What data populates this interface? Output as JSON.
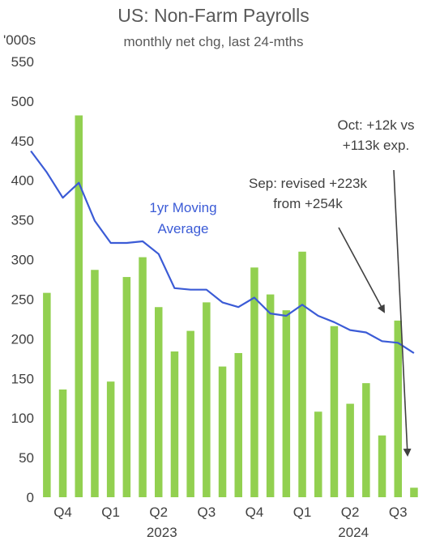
{
  "chart_data": {
    "type": "bar",
    "title": "US: Non-Farm Payrolls",
    "subtitle": "monthly net chg, last 24-mths",
    "unit_label": "'000s",
    "ylim": [
      0,
      550
    ],
    "yticks": [
      0,
      50,
      100,
      150,
      200,
      250,
      300,
      350,
      400,
      450,
      500,
      550
    ],
    "quarter_labels": [
      "Q4",
      "Q1",
      "Q2",
      "Q3",
      "Q4",
      "Q1",
      "Q2",
      "Q3"
    ],
    "year_labels": [
      "2023",
      "2024"
    ],
    "series": [
      {
        "values": [
          258,
          136,
          482,
          287,
          146,
          278,
          303,
          240,
          184,
          210,
          246,
          165,
          182,
          290,
          256,
          236,
          310,
          108,
          216,
          118,
          144,
          78,
          223,
          12
        ],
        "color": "#92d050"
      },
      {
        "name": "1yr Moving Average",
        "type": "line",
        "values": [
          437,
          410,
          378,
          397,
          349,
          321,
          321,
          323,
          307,
          264,
          262,
          262,
          246,
          240,
          252,
          232,
          229,
          243,
          229,
          221,
          211,
          208,
          197,
          195,
          182
        ],
        "color": "#3b5bd6"
      }
    ],
    "annotations": [
      {
        "lines": [
          "1yr Moving",
          "Average"
        ],
        "color": "#3b5bd6"
      },
      {
        "lines": [
          "Sep: revised +223k",
          "from +254k"
        ]
      },
      {
        "lines": [
          "Oct: +12k vs",
          "+113k exp."
        ]
      }
    ]
  }
}
